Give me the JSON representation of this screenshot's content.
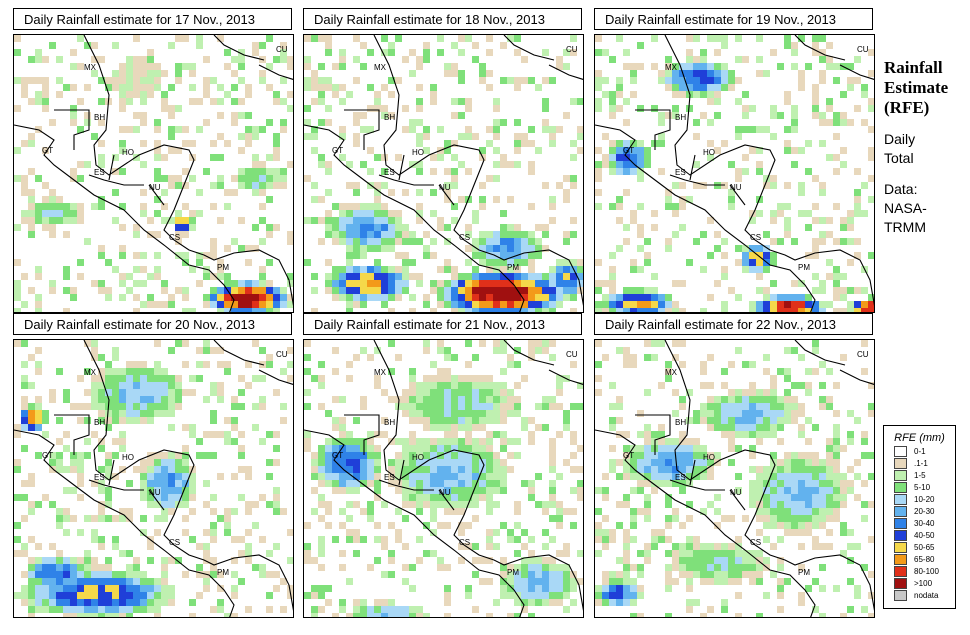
{
  "panels": [
    {
      "title": "Daily Rainfall estimate for  17 Nov., 2013"
    },
    {
      "title": "Daily Rainfall estimate for  18 Nov., 2013"
    },
    {
      "title": "Daily Rainfall estimate for  19 Nov., 2013"
    },
    {
      "title": "Daily Rainfall estimate for  20 Nov., 2013"
    },
    {
      "title": "Daily Rainfall estimate for  21 Nov., 2013"
    },
    {
      "title": "Daily Rainfall estimate for  22 Nov., 2013"
    }
  ],
  "map_labels": [
    "MX",
    "BH",
    "GT",
    "HO",
    "ES",
    "NU",
    "CS",
    "PM",
    "CU"
  ],
  "sidebar": {
    "title_line1": "Rainfall",
    "title_line2": "Estimate",
    "title_line3": "(RFE)",
    "daily_line1": "Daily",
    "daily_line2": "Total",
    "source_line1": "Data:",
    "source_line2": "NASA-",
    "source_line3": "TRMM"
  },
  "legend": {
    "title": "RFE (mm)",
    "items": [
      {
        "label": "0-1",
        "color": "#ffffff"
      },
      {
        "label": ".1-1",
        "color": "#e8d8bc"
      },
      {
        "label": "1-5",
        "color": "#bff0b0"
      },
      {
        "label": "5-10",
        "color": "#7fe07a"
      },
      {
        "label": "10-20",
        "color": "#a9d8f6"
      },
      {
        "label": "20-30",
        "color": "#62b2ee"
      },
      {
        "label": "30-40",
        "color": "#2f82e8"
      },
      {
        "label": "40-50",
        "color": "#1f3fd8"
      },
      {
        "label": "50-65",
        "color": "#f5d84a"
      },
      {
        "label": "65-80",
        "color": "#f39a1a"
      },
      {
        "label": "80-100",
        "color": "#e0301a"
      },
      {
        "label": ">100",
        "color": "#a01010"
      },
      {
        "label": "nodata",
        "color": "#c8c8c8"
      }
    ]
  }
}
